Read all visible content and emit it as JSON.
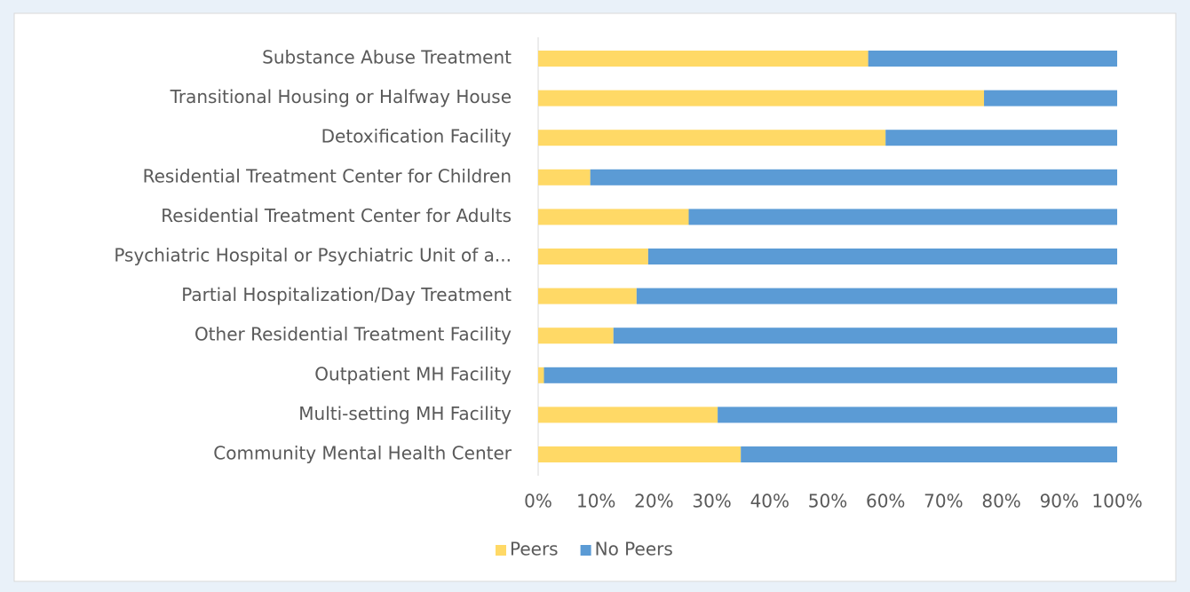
{
  "chart_data": {
    "type": "stacked-barh",
    "categories": [
      "Substance Abuse Treatment",
      "Transitional Housing or Halfway House",
      "Detoxification Facility",
      "Residential Treatment Center for Children",
      "Residential Treatment Center for Adults",
      "Psychiatric Hospital or Psychiatric Unit of a...",
      "Partial Hospitalization/Day Treatment",
      "Other Residential Treatment Facility",
      "Outpatient MH Facility",
      "Multi-setting MH Facility",
      "Community Mental Health Center"
    ],
    "series": [
      {
        "name": "Peers",
        "color": "#ffd966",
        "values": [
          57,
          77,
          60,
          9,
          26,
          19,
          17,
          13,
          1,
          31,
          35
        ]
      },
      {
        "name": "No Peers",
        "color": "#5b9bd5",
        "values": [
          43,
          23,
          40,
          91,
          74,
          81,
          83,
          87,
          99,
          69,
          65
        ]
      }
    ],
    "xlim": [
      0,
      100
    ],
    "xticks": [
      {
        "value": 0,
        "label": "0%"
      },
      {
        "value": 10,
        "label": "10%"
      },
      {
        "value": 20,
        "label": "20%"
      },
      {
        "value": 30,
        "label": "30%"
      },
      {
        "value": 40,
        "label": "40%"
      },
      {
        "value": 50,
        "label": "50%"
      },
      {
        "value": 60,
        "label": "60%"
      },
      {
        "value": 70,
        "label": "70%"
      },
      {
        "value": 80,
        "label": "80%"
      },
      {
        "value": 90,
        "label": "90%"
      },
      {
        "value": 100,
        "label": "100%"
      }
    ],
    "grid": false,
    "legend": "bottom"
  }
}
